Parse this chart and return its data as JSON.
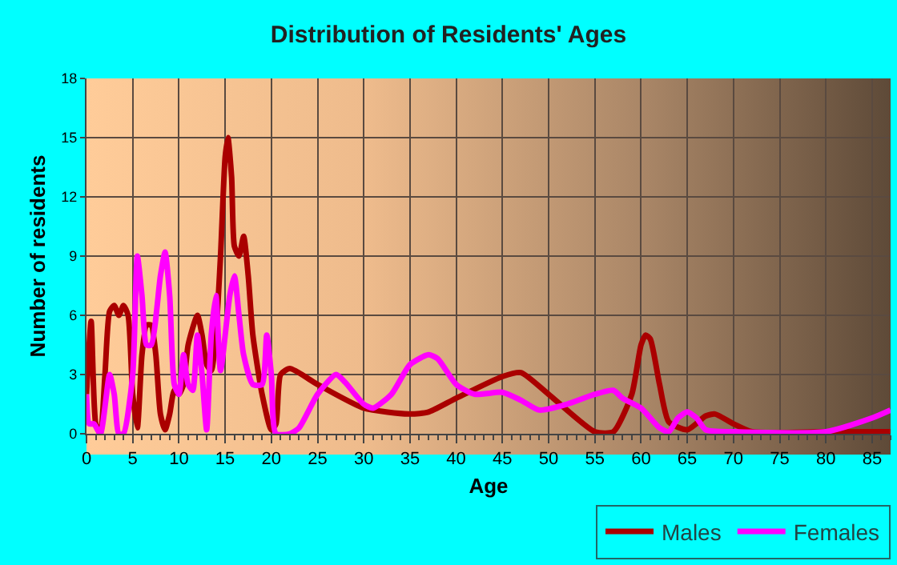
{
  "chart_data": {
    "type": "line",
    "title": "Distribution of Residents' Ages",
    "xlabel": "Age",
    "ylabel": "Number of residents",
    "xlim": [
      0,
      87
    ],
    "xticks": [
      0,
      5,
      10,
      15,
      20,
      25,
      30,
      35,
      40,
      45,
      50,
      55,
      60,
      65,
      70,
      75,
      80,
      85
    ],
    "ylim": [
      0,
      18
    ],
    "yticks": [
      0,
      3,
      6,
      9,
      12,
      15,
      18
    ],
    "grid": true,
    "legend": "bottom right",
    "marker": "none",
    "line_style": "solid",
    "series": [
      {
        "name": "Males",
        "color": "#aa0000",
        "x": [
          0,
          0.5,
          1,
          1.5,
          2,
          2.5,
          3,
          3.5,
          4,
          4.5,
          5,
          5.5,
          6,
          6.5,
          7,
          7.5,
          8,
          8.5,
          9,
          9.5,
          10,
          10.5,
          11,
          12,
          12.5,
          13,
          13.5,
          14,
          14.5,
          15,
          15.3,
          15.7,
          16,
          16.5,
          17,
          17.5,
          18,
          19,
          20,
          20.5,
          21,
          22,
          25,
          30,
          35,
          37,
          40,
          45,
          47,
          50,
          55,
          57,
          59,
          60,
          60.5,
          61,
          62,
          63,
          65,
          67,
          68,
          70,
          72,
          80,
          87
        ],
        "values": [
          2,
          5.7,
          0.5,
          0,
          3,
          6.2,
          6.5,
          6,
          6.5,
          6,
          2,
          0.3,
          4,
          5.5,
          5.5,
          4,
          1,
          0.2,
          1,
          2.2,
          2,
          2.5,
          4.5,
          6,
          5,
          3.5,
          3.2,
          5,
          9,
          14,
          15,
          13,
          9.5,
          9,
          10,
          8,
          5,
          2,
          0.2,
          0.5,
          3,
          3.3,
          2.5,
          1.3,
          1,
          1.1,
          1.8,
          2.9,
          3.1,
          2,
          0.1,
          0.1,
          2,
          4.5,
          5,
          4.8,
          2.5,
          0.6,
          0.2,
          0.9,
          1,
          0.5,
          0.1,
          0.1,
          0.1
        ]
      },
      {
        "name": "Females",
        "color": "#ff00ff",
        "x": [
          0,
          0.3,
          0.8,
          1.5,
          2.5,
          3,
          3.5,
          4,
          5,
          5.5,
          6,
          6.5,
          7,
          8,
          8.5,
          9,
          9.5,
          10,
          10.5,
          11,
          11.5,
          12,
          12.5,
          13,
          13.5,
          14,
          14.5,
          15.5,
          16,
          16.5,
          17,
          18,
          19,
          19.5,
          20,
          20.5,
          22,
          23,
          25,
          27,
          28,
          30,
          31,
          33,
          35,
          37,
          38,
          40,
          42,
          45,
          47,
          49,
          52,
          55,
          57,
          58,
          60,
          62,
          63,
          64,
          65,
          66,
          67,
          70,
          80,
          85,
          87
        ],
        "values": [
          2,
          0.5,
          0.5,
          0,
          3,
          2,
          0,
          0,
          3,
          9,
          7,
          4.5,
          4.5,
          8,
          9.2,
          7,
          2.5,
          2,
          4,
          2.5,
          2.2,
          5,
          3,
          0.2,
          5,
          7,
          3.2,
          7,
          8,
          6,
          4,
          2.5,
          2.5,
          5,
          3,
          0,
          0,
          0.3,
          2,
          3,
          2.6,
          1.5,
          1.3,
          2,
          3.5,
          4,
          3.8,
          2.5,
          2,
          2.1,
          1.7,
          1.2,
          1.5,
          2,
          2.2,
          1.8,
          1.3,
          0.3,
          0.1,
          0.8,
          1.1,
          0.8,
          0.2,
          0.1,
          0.1,
          0.8,
          1.2
        ]
      }
    ]
  }
}
